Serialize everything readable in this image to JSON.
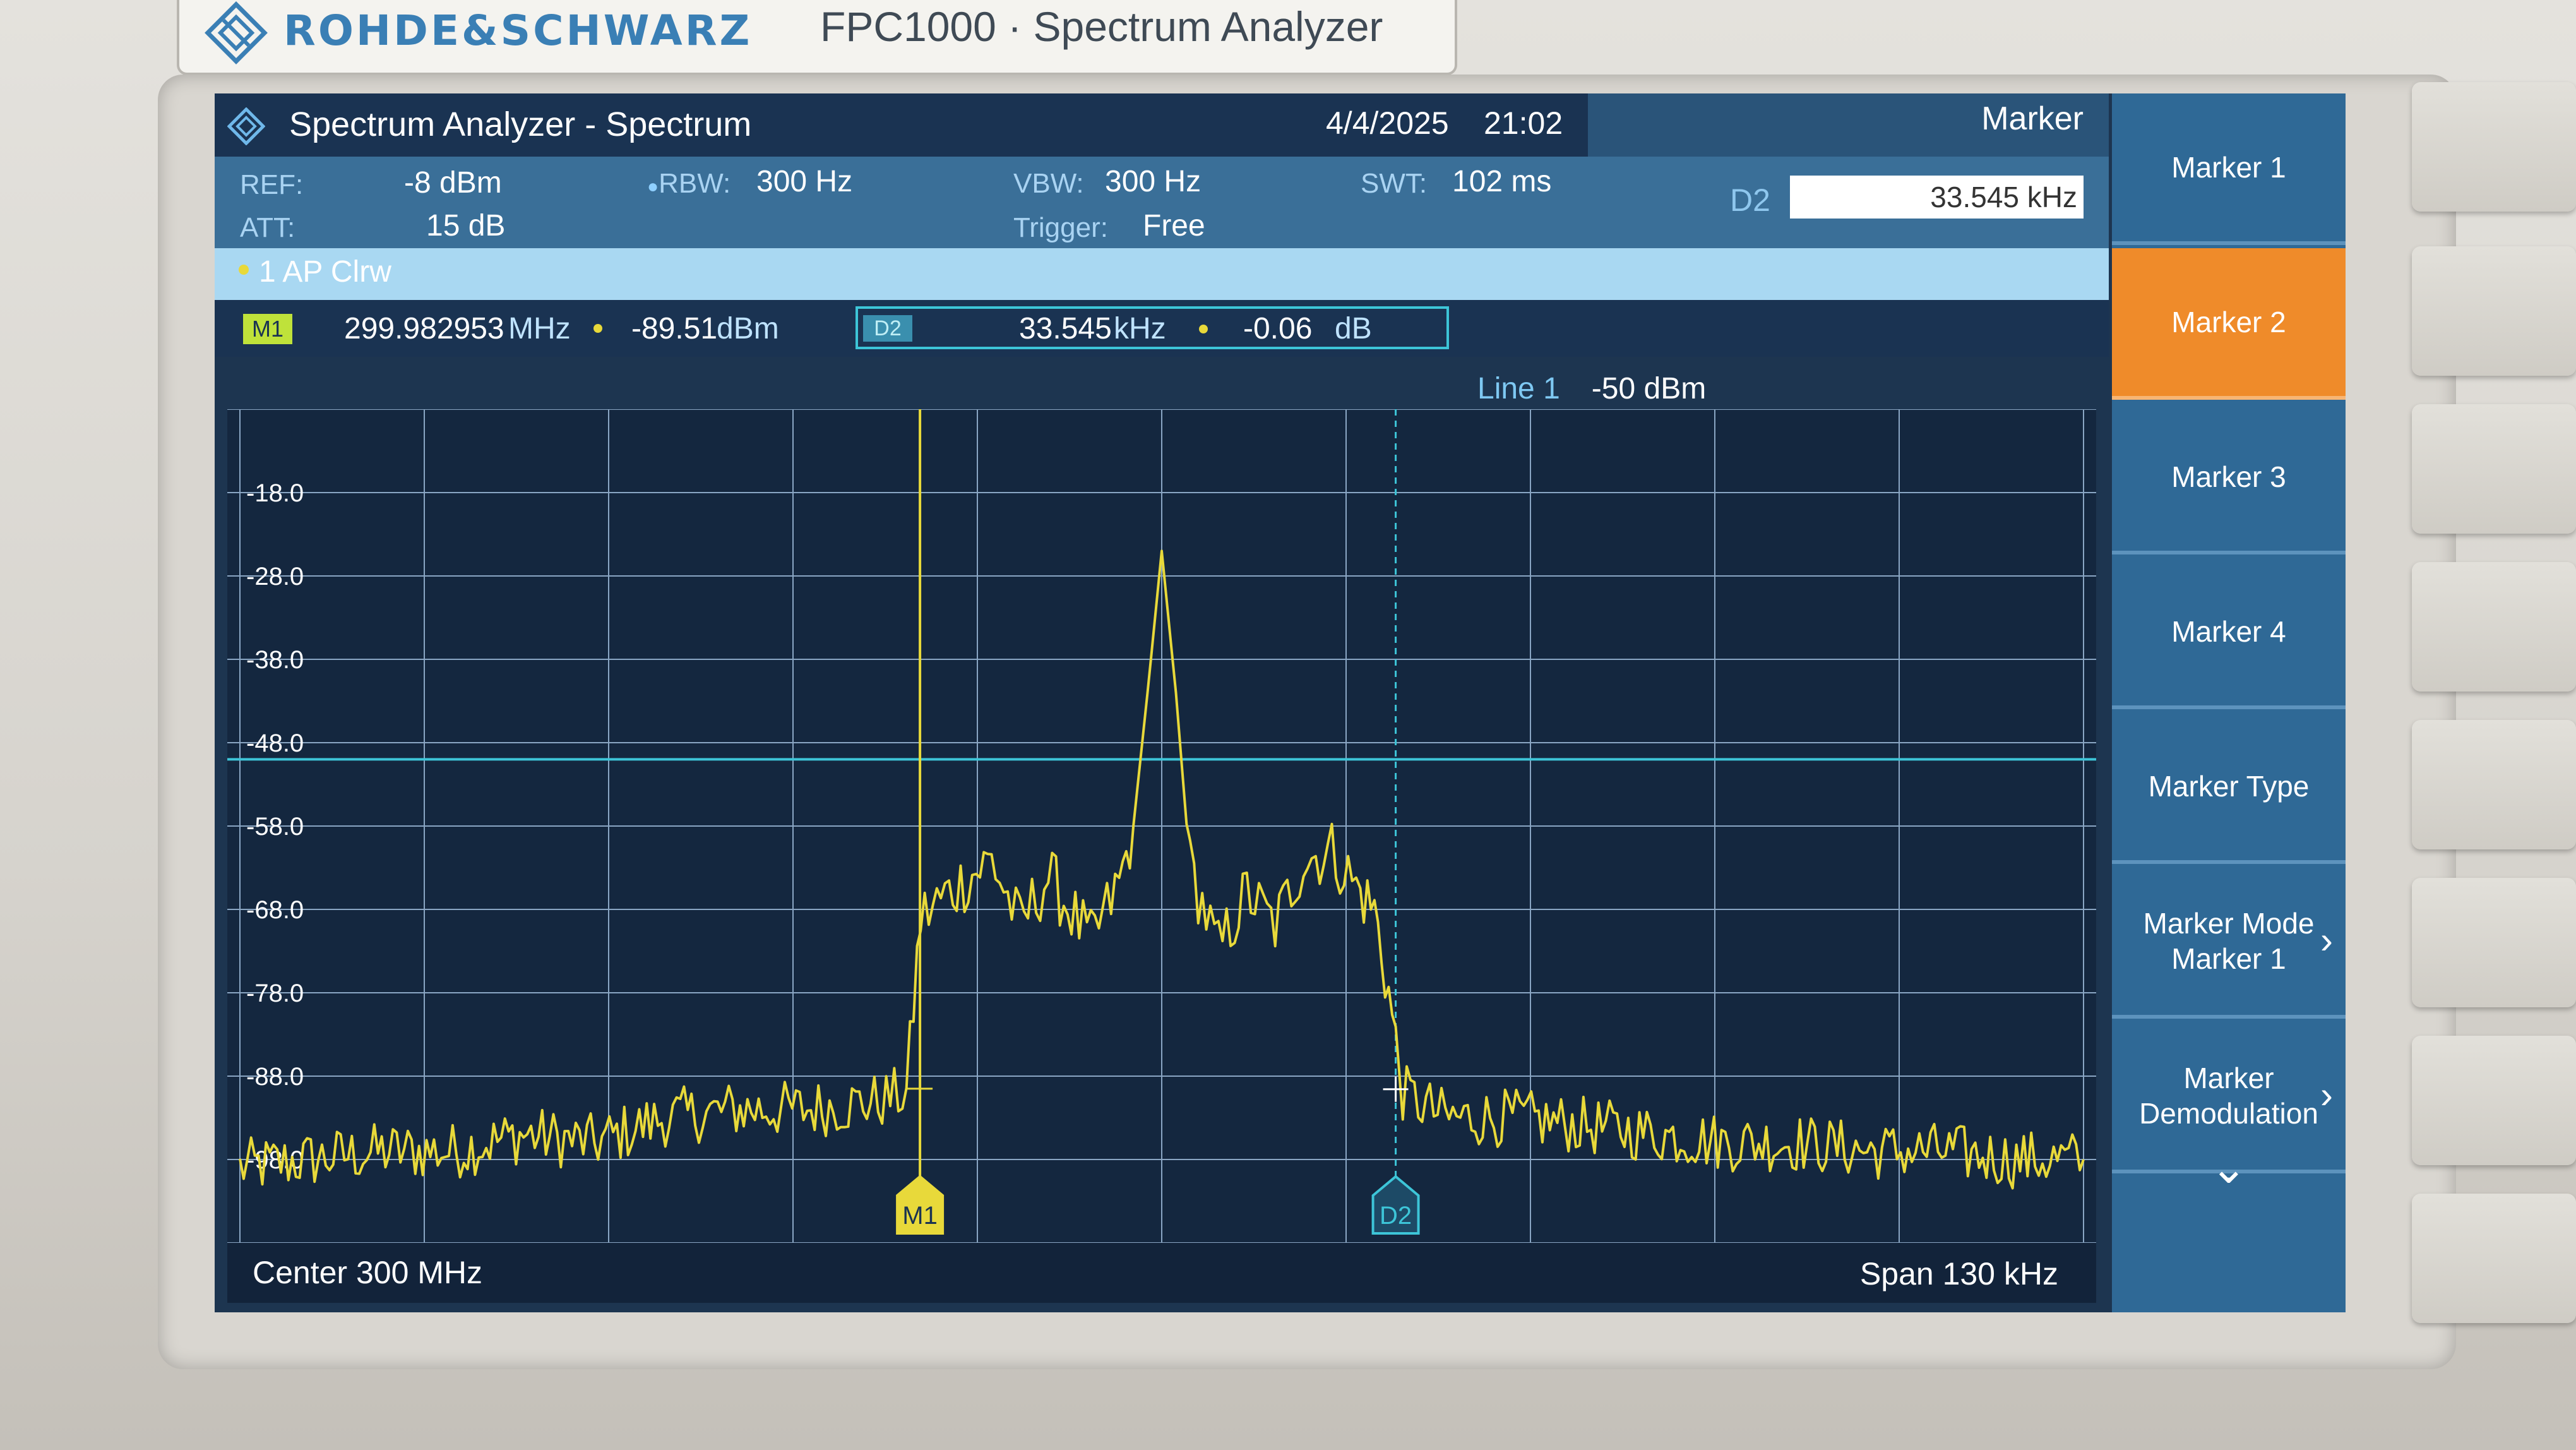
{
  "device": {
    "brand": "ROHDE&SCHWARZ",
    "model": "FPC1000 · Spectrum Analyzer"
  },
  "titlebar": {
    "title": "Spectrum Analyzer - Spectrum",
    "date": "4/4/2025",
    "time": "21:02"
  },
  "settings": {
    "ref_label": "REF:",
    "ref_value": "-8 dBm",
    "att_label": "ATT:",
    "att_value": "15 dB",
    "rbw_label": "RBW:",
    "rbw_value": "300 Hz",
    "vbw_label": "VBW:",
    "vbw_value": "300 Hz",
    "trigger_label": "Trigger:",
    "trigger_value": "Free",
    "swt_label": "SWT:",
    "swt_value": "102 ms"
  },
  "marker_panel": {
    "title": "Marker",
    "d2_label": "D2",
    "d2_value": "33.545 kHz"
  },
  "trace": {
    "label": "1 AP Clrw",
    "color": "#e8d93a"
  },
  "marker_table": {
    "m1_badge": "M1",
    "m1_freq": "299.982953",
    "m1_freq_unit": "MHz",
    "m1_level": "-89.51",
    "m1_level_unit": "dBm",
    "d2_badge": "D2",
    "d2_freq": "33.545",
    "d2_freq_unit": "kHz",
    "d2_level": "-0.06",
    "d2_level_unit": "dB"
  },
  "display_line": {
    "label": "Line 1",
    "value": "-50 dBm",
    "color": "#3dc5d8"
  },
  "plot": {
    "y_ticks": [
      "-18.0",
      "-28.0",
      "-38.0",
      "-48.0",
      "-58.0",
      "-68.0",
      "-78.0",
      "-88.0",
      "-98.0"
    ],
    "marker_m1_label": "M1",
    "marker_d2_label": "D2"
  },
  "footer": {
    "center": "Center 300 MHz",
    "span": "Span 130 kHz"
  },
  "softkeys": [
    {
      "label": "Marker 1",
      "active": false
    },
    {
      "label": "Marker 2",
      "active": true
    },
    {
      "label": "Marker 3",
      "active": false
    },
    {
      "label": "Marker 4",
      "active": false
    },
    {
      "label": "Marker Type",
      "active": false
    },
    {
      "label": "Marker Mode\nMarker 1",
      "active": false
    },
    {
      "label": "Marker\nDemodulation",
      "active": false
    }
  ],
  "chart_data": {
    "type": "line",
    "title": "",
    "xlabel": "",
    "ylabel": "",
    "x_unit": "MHz",
    "y_unit": "dBm",
    "xlim": [
      299.935,
      300.065
    ],
    "ylim": [
      -108,
      -8
    ],
    "grid": true,
    "reference_line": -50,
    "markers": [
      {
        "name": "M1",
        "x": 299.982953,
        "y": -89.51
      },
      {
        "name": "D2",
        "x": 300.016498,
        "y": -89.57
      }
    ],
    "series": [
      {
        "name": "1 AP Clrw",
        "x": [
          299.935,
          299.94,
          299.945,
          299.95,
          299.955,
          299.96,
          299.965,
          299.97,
          299.975,
          299.98,
          299.982,
          299.983,
          299.985,
          299.988,
          299.99,
          299.992,
          299.995,
          299.997,
          299.998,
          299.999,
          300.0,
          300.001,
          300.002,
          300.004,
          300.006,
          300.008,
          300.01,
          300.012,
          300.014,
          300.015,
          300.016,
          300.017,
          300.02,
          300.025,
          300.03,
          300.035,
          300.04,
          300.045,
          300.05,
          300.055,
          300.06,
          300.065
        ],
        "y": [
          -99,
          -98,
          -97,
          -97,
          -95,
          -96,
          -93,
          -92,
          -92,
          -91,
          -90,
          -69,
          -66,
          -62,
          -70,
          -64,
          -72,
          -65,
          -58,
          -42,
          -25,
          -42,
          -63,
          -73,
          -66,
          -70,
          -62,
          -61,
          -66,
          -68,
          -78,
          -90,
          -93,
          -93,
          -94,
          -95,
          -96,
          -96,
          -97,
          -97,
          -98,
          -98
        ]
      }
    ]
  }
}
